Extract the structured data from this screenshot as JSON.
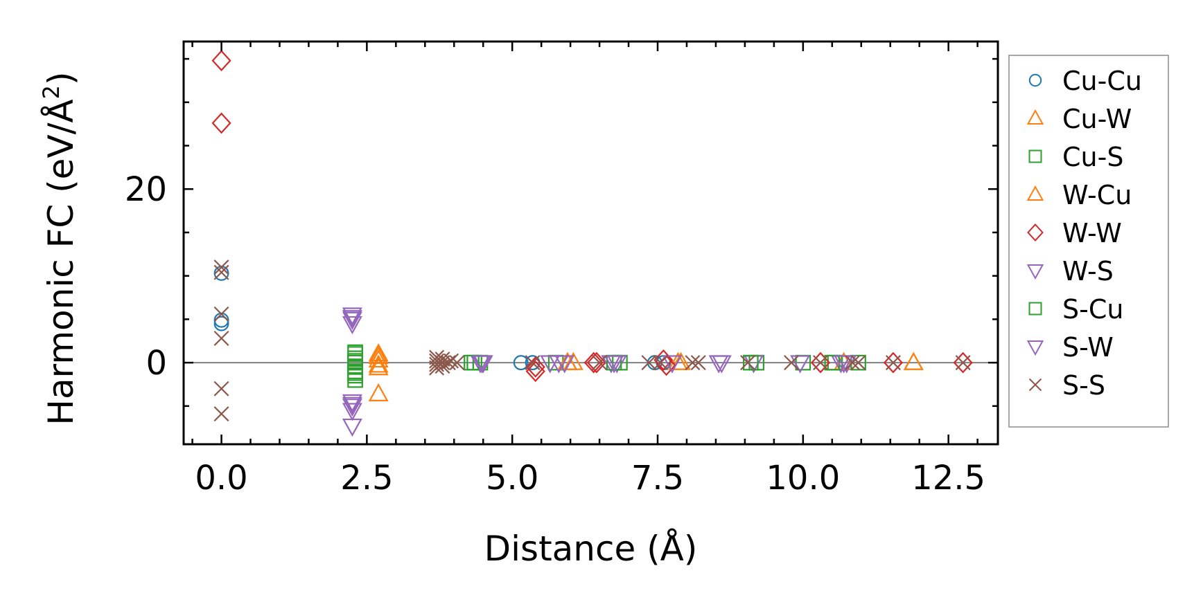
{
  "chart_data": {
    "type": "scatter",
    "title": "",
    "xlabel": "Distance (Å)",
    "ylabel_main": "Harmonic FC (eV/Å",
    "ylabel_sup": "2",
    "ylabel_close": ")",
    "xlim": [
      -0.65,
      13.35
    ],
    "ylim": [
      -9.4,
      37.0
    ],
    "x_ticks": [
      0.0,
      2.5,
      5.0,
      7.5,
      10.0,
      12.5
    ],
    "x_tick_labels": [
      "0.0",
      "2.5",
      "5.0",
      "7.5",
      "10.0",
      "12.5"
    ],
    "y_ticks": [
      0,
      20
    ],
    "y_tick_labels": [
      "0",
      "20"
    ],
    "zero_line": true,
    "grid": false,
    "legend_position": "outside-right",
    "series": [
      {
        "name": "Cu-Cu",
        "marker": "circle",
        "color": "#1f77b4",
        "points": [
          [
            0.0,
            10.3
          ],
          [
            0.0,
            4.9
          ],
          [
            0.0,
            4.5
          ],
          [
            5.15,
            0.0
          ],
          [
            5.35,
            0.0
          ],
          [
            7.45,
            0.0
          ],
          [
            7.6,
            0.0
          ]
        ]
      },
      {
        "name": "Cu-W",
        "marker": "triangle-up",
        "color": "#ff7f0e",
        "points": [
          [
            2.7,
            0.7
          ],
          [
            2.7,
            -0.6
          ],
          [
            2.7,
            -3.6
          ],
          [
            5.95,
            0.0
          ],
          [
            6.05,
            0.0
          ],
          [
            7.9,
            0.0
          ],
          [
            10.7,
            0.0
          ],
          [
            11.9,
            0.0
          ]
        ]
      },
      {
        "name": "Cu-S",
        "marker": "square",
        "color": "#2ca02c",
        "points": [
          [
            2.3,
            1.0
          ],
          [
            2.3,
            0.5
          ],
          [
            2.3,
            0.0
          ],
          [
            2.3,
            -0.5
          ],
          [
            2.3,
            -1.0
          ],
          [
            2.3,
            -1.5
          ],
          [
            2.3,
            -2.0
          ],
          [
            4.35,
            0.0
          ],
          [
            4.45,
            0.0
          ],
          [
            5.75,
            0.0
          ],
          [
            6.85,
            0.0
          ],
          [
            9.2,
            0.0
          ],
          [
            10.0,
            0.0
          ],
          [
            10.55,
            0.0
          ],
          [
            10.95,
            0.0
          ]
        ]
      },
      {
        "name": "W-Cu",
        "marker": "triangle-up",
        "color": "#ff7f0e",
        "points": [
          [
            2.7,
            1.0
          ],
          [
            2.7,
            0.3
          ],
          [
            2.7,
            -0.3
          ],
          [
            5.95,
            0.0
          ],
          [
            7.85,
            0.0
          ],
          [
            11.9,
            0.0
          ]
        ]
      },
      {
        "name": "W-W",
        "marker": "diamond",
        "color": "#d62728",
        "points": [
          [
            0.0,
            34.8
          ],
          [
            0.0,
            27.6
          ],
          [
            5.4,
            -1.0
          ],
          [
            5.4,
            -0.5
          ],
          [
            6.4,
            0.0
          ],
          [
            6.45,
            0.0
          ],
          [
            7.6,
            0.3
          ],
          [
            7.65,
            -0.3
          ],
          [
            10.3,
            0.0
          ],
          [
            11.55,
            0.0
          ],
          [
            12.75,
            0.0
          ]
        ]
      },
      {
        "name": "W-S",
        "marker": "triangle-down",
        "color": "#9467bd",
        "points": [
          [
            2.25,
            5.5
          ],
          [
            2.25,
            5.0
          ],
          [
            2.25,
            4.5
          ],
          [
            2.25,
            -4.5
          ],
          [
            2.25,
            -5.0
          ],
          [
            2.25,
            -5.5
          ],
          [
            2.25,
            -7.3
          ],
          [
            4.45,
            0.0
          ],
          [
            4.5,
            0.0
          ],
          [
            5.65,
            0.0
          ],
          [
            5.9,
            0.0
          ],
          [
            6.7,
            0.0
          ],
          [
            6.8,
            0.0
          ],
          [
            7.75,
            0.0
          ],
          [
            8.6,
            0.0
          ],
          [
            9.15,
            0.0
          ],
          [
            9.95,
            0.0
          ],
          [
            10.65,
            0.0
          ],
          [
            10.75,
            0.0
          ]
        ]
      },
      {
        "name": "S-Cu",
        "marker": "square",
        "color": "#2ca02c",
        "points": [
          [
            2.3,
            1.2
          ],
          [
            2.3,
            0.2
          ],
          [
            2.3,
            -1.2
          ],
          [
            4.3,
            0.0
          ],
          [
            6.75,
            0.0
          ],
          [
            9.1,
            0.0
          ],
          [
            10.5,
            0.0
          ]
        ]
      },
      {
        "name": "S-W",
        "marker": "triangle-down",
        "color": "#9467bd",
        "points": [
          [
            2.25,
            5.2
          ],
          [
            2.25,
            -4.8
          ],
          [
            4.48,
            0.0
          ],
          [
            5.8,
            0.0
          ],
          [
            6.75,
            0.0
          ],
          [
            8.55,
            0.0
          ],
          [
            10.7,
            0.0
          ]
        ]
      },
      {
        "name": "S-S",
        "marker": "x",
        "color": "#8c564b",
        "points": [
          [
            0.0,
            11.0
          ],
          [
            0.0,
            10.4
          ],
          [
            0.0,
            5.6
          ],
          [
            0.0,
            2.8
          ],
          [
            0.0,
            -3.0
          ],
          [
            0.0,
            -5.9
          ],
          [
            3.7,
            0.6
          ],
          [
            3.7,
            0.2
          ],
          [
            3.7,
            -0.2
          ],
          [
            3.7,
            -0.6
          ],
          [
            3.8,
            0.4
          ],
          [
            3.8,
            0.0
          ],
          [
            3.8,
            -0.4
          ],
          [
            3.9,
            0.0
          ],
          [
            3.95,
            0.2
          ],
          [
            4.05,
            0.0
          ],
          [
            5.35,
            0.0
          ],
          [
            6.5,
            0.0
          ],
          [
            7.35,
            0.0
          ],
          [
            7.55,
            0.0
          ],
          [
            8.1,
            0.0
          ],
          [
            8.2,
            0.0
          ],
          [
            9.05,
            0.0
          ],
          [
            9.8,
            0.0
          ],
          [
            10.3,
            0.0
          ],
          [
            10.85,
            0.0
          ],
          [
            10.95,
            0.0
          ],
          [
            11.55,
            0.0
          ],
          [
            12.75,
            0.0
          ]
        ]
      }
    ]
  }
}
